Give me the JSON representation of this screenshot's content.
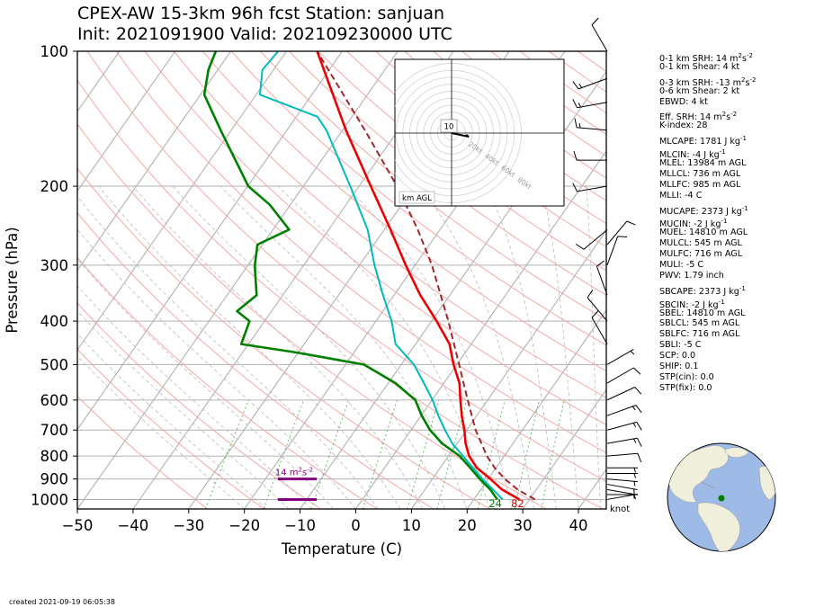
{
  "title": "CPEX-AW 15-3km  96h fcst  Station: sanjuan",
  "subtitle": "Init: 2021091900  Valid: 202109230000 UTC",
  "created": "created 2021-09-19 06:05:38",
  "chart_data": {
    "type": "line",
    "subtype": "skew-T log-p diagram",
    "xlabel": "Temperature (C)",
    "ylabel": "Pressure (hPa)",
    "xlim": [
      -50,
      45
    ],
    "ylim": [
      1050,
      100
    ],
    "y_scale": "log",
    "x_ticks": [
      -50,
      -40,
      -30,
      -20,
      -10,
      0,
      10,
      20,
      30,
      40
    ],
    "y_ticks": [
      100,
      200,
      300,
      400,
      500,
      600,
      700,
      800,
      900,
      1000
    ],
    "grid": true,
    "series": [
      {
        "key": "temperature",
        "color": "#ee0000",
        "points": [
          [
            1000,
            28.2
          ],
          [
            950,
            23.8
          ],
          [
            900,
            20.4
          ],
          [
            850,
            16.6
          ],
          [
            800,
            13.7
          ],
          [
            750,
            11.5
          ],
          [
            700,
            9.6
          ],
          [
            650,
            7.3
          ],
          [
            600,
            5.1
          ],
          [
            550,
            2.8
          ],
          [
            500,
            -0.6
          ],
          [
            450,
            -3.9
          ],
          [
            400,
            -9.1
          ],
          [
            350,
            -15.3
          ],
          [
            300,
            -21.7
          ],
          [
            250,
            -28.9
          ],
          [
            200,
            -37.9
          ],
          [
            150,
            -49.4
          ],
          [
            100,
            -64.5
          ]
        ]
      },
      {
        "key": "dewpoint",
        "color": "#008000",
        "points": [
          [
            1000,
            24.2
          ],
          [
            950,
            21.7
          ],
          [
            900,
            18.5
          ],
          [
            850,
            15.4
          ],
          [
            800,
            12.0
          ],
          [
            750,
            7.3
          ],
          [
            700,
            3.4
          ],
          [
            650,
            0.1
          ],
          [
            600,
            -3.0
          ],
          [
            550,
            -8.7
          ],
          [
            500,
            -16.7
          ],
          [
            470,
            -30.3
          ],
          [
            450,
            -41.3
          ],
          [
            400,
            -42.7
          ],
          [
            380,
            -46.2
          ],
          [
            350,
            -44.7
          ],
          [
            320,
            -47.1
          ],
          [
            300,
            -48.8
          ],
          [
            270,
            -50.9
          ],
          [
            250,
            -47.1
          ],
          [
            220,
            -53.7
          ],
          [
            200,
            -59.9
          ],
          [
            150,
            -71.9
          ],
          [
            125,
            -79.3
          ],
          [
            110,
            -81.7
          ],
          [
            100,
            -82.7
          ]
        ]
      },
      {
        "key": "wetbulb",
        "color": "#00bbbb",
        "points": [
          [
            1000,
            25.2
          ],
          [
            950,
            22.2
          ],
          [
            900,
            19.0
          ],
          [
            850,
            15.9
          ],
          [
            800,
            12.6
          ],
          [
            750,
            9.1
          ],
          [
            700,
            6.1
          ],
          [
            650,
            3.1
          ],
          [
            600,
            0.1
          ],
          [
            550,
            -3.6
          ],
          [
            500,
            -7.7
          ],
          [
            450,
            -13.6
          ],
          [
            400,
            -17.2
          ],
          [
            350,
            -22.0
          ],
          [
            300,
            -27.3
          ],
          [
            250,
            -33.0
          ],
          [
            200,
            -41.6
          ],
          [
            150,
            -52.9
          ],
          [
            140,
            -56.2
          ],
          [
            125,
            -69.3
          ],
          [
            110,
            -72.0
          ],
          [
            100,
            -71.5
          ]
        ]
      },
      {
        "key": "parcel",
        "color": "#a0282d",
        "dashed": true,
        "points": [
          [
            1000,
            31.0
          ],
          [
            950,
            26.6
          ],
          [
            900,
            23.0
          ],
          [
            850,
            19.8
          ],
          [
            800,
            16.9
          ],
          [
            700,
            11.6
          ],
          [
            600,
            6.4
          ],
          [
            500,
            0.4
          ],
          [
            400,
            -7.0
          ],
          [
            300,
            -17.0
          ],
          [
            250,
            -24.0
          ],
          [
            200,
            -33.2
          ],
          [
            150,
            -46.0
          ],
          [
            100,
            -64.5
          ]
        ]
      }
    ],
    "surface_labels": {
      "dewpoint": "24",
      "temperature": "82"
    },
    "srh_label": "14 m$^2$s$^{-2}$",
    "srh_bars_pressure": [
      900,
      1000
    ],
    "srh_bars_x_range": [
      -14,
      -7
    ],
    "wind_unit": "knot",
    "wind_barbs": [
      {
        "p": 1000,
        "dir": 80,
        "spd": 4
      },
      {
        "p": 975,
        "dir": 90,
        "spd": 5
      },
      {
        "p": 950,
        "dir": 100,
        "spd": 5
      },
      {
        "p": 925,
        "dir": 100,
        "spd": 5
      },
      {
        "p": 900,
        "dir": 95,
        "spd": 5
      },
      {
        "p": 875,
        "dir": 90,
        "spd": 5
      },
      {
        "p": 850,
        "dir": 90,
        "spd": 5
      },
      {
        "p": 800,
        "dir": 85,
        "spd": 10
      },
      {
        "p": 750,
        "dir": 80,
        "spd": 15
      },
      {
        "p": 700,
        "dir": 75,
        "spd": 15
      },
      {
        "p": 650,
        "dir": 70,
        "spd": 15
      },
      {
        "p": 600,
        "dir": 65,
        "spd": 10
      },
      {
        "p": 550,
        "dir": 60,
        "spd": 10
      },
      {
        "p": 500,
        "dir": 60,
        "spd": 5
      },
      {
        "p": 450,
        "dir": 330,
        "spd": 10
      },
      {
        "p": 400,
        "dir": 320,
        "spd": 10
      },
      {
        "p": 350,
        "dir": 340,
        "spd": 10
      },
      {
        "p": 300,
        "dir": 20,
        "spd": 10
      },
      {
        "p": 270,
        "dir": 40,
        "spd": 10
      },
      {
        "p": 250,
        "dir": 230,
        "spd": 10
      },
      {
        "p": 200,
        "dir": 260,
        "spd": 10
      },
      {
        "p": 175,
        "dir": 270,
        "spd": 10
      },
      {
        "p": 150,
        "dir": 275,
        "spd": 15
      },
      {
        "p": 130,
        "dir": 260,
        "spd": 15
      },
      {
        "p": 115,
        "dir": 250,
        "spd": 15
      },
      {
        "p": 100,
        "dir": 330,
        "spd": 10
      }
    ],
    "hodograph": {
      "ring_labels": [
        "20kt",
        "40kt",
        "60kt",
        "80kt"
      ],
      "ring_speeds": [
        20,
        40,
        60,
        80
      ],
      "height_label": "10",
      "legend": "km AGL",
      "points": [
        [
          0,
          0
        ],
        [
          3,
          1
        ],
        [
          6,
          2
        ],
        [
          9,
          3
        ],
        [
          12,
          4
        ],
        [
          10,
          2
        ]
      ]
    }
  },
  "stats": [
    "0-1 km SRH: 14 m$^2$s$^{-2}$",
    "0-1 km Shear: 4 kt",
    "0-3 km SRH: -13 m$^2$s$^{-2}$",
    "0-6 km Shear: 2 kt",
    "EBWD: 4 kt",
    "Eff. SRH: 14 m$^2$s$^{-2}$",
    "K-index: 28",
    "MLCAPE: 1781 J kg$^{-1}$",
    "MLCIN: -4 J kg$^{-1}$",
    "MLEL: 13984 m AGL",
    "MLLCL: 736 m AGL",
    "MLLFC: 985 m AGL",
    "MLLI: -4 C",
    "MUCAPE: 2373 J kg$^{-1}$",
    "MUCIN: -2 J kg$^{-1}$",
    "MUEL: 14810 m AGL",
    "MULCL: 545 m AGL",
    "MULFC: 716 m AGL",
    "MULI: -5 C",
    "PWV: 1.79 inch",
    "SBCAPE: 2373 J kg$^{-1}$",
    "SBCIN: -2 J kg$^{-1}$",
    "SBEL: 14810 m AGL",
    "SBLCL: 545 m AGL",
    "SBLFC: 716 m AGL",
    "SBLI: -5 C",
    "SCP: 0.0",
    "SHIP: 0.1",
    "STP(cin): 0.0",
    "STP(fix): 0.0"
  ],
  "map": {
    "ocean_color": "#9dbbe6",
    "land_color": "#efefdb",
    "station_marker_color": "#008000"
  },
  "colors": {
    "isobar": "#b0b0b0",
    "isotherm": "#aaaaaa",
    "dry_adiabat": "#f4a9a5",
    "moist_adiabat": "#bbbbbb",
    "mixing_ratio": "#66bb66",
    "srh_bar": "#800080"
  }
}
